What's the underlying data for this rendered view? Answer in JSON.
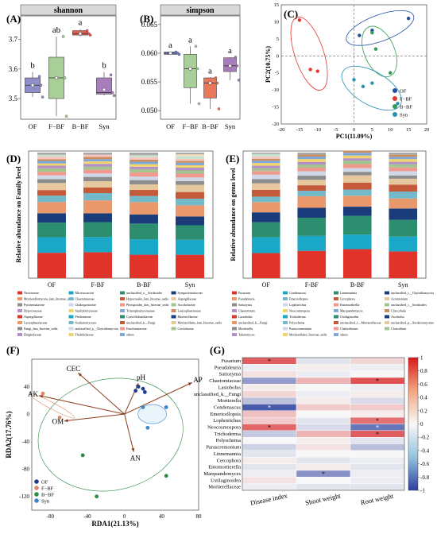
{
  "panels": {
    "A": "(A)",
    "B": "(B)",
    "C": "(C)",
    "D": "(D)",
    "E": "(E)",
    "F": "(F)",
    "G": "(G)"
  },
  "chart_data": [
    {
      "id": "A",
      "type": "box",
      "title": "shannon",
      "categories": [
        "OF",
        "F−BF",
        "B−BF",
        "Syn"
      ],
      "boxes": [
        {
          "q1": 3.52,
          "median": 3.545,
          "q3": 3.57,
          "min": 3.505,
          "max": 3.59,
          "mean": 3.545,
          "color": "#8f8ec9",
          "points": [
            3.505,
            3.545,
            3.575
          ]
        },
        {
          "q1": 3.5,
          "median": 3.57,
          "q3": 3.64,
          "min": 3.44,
          "max": 3.71,
          "mean": 3.57,
          "color": "#a8cf98",
          "points": [
            3.44,
            3.57,
            3.71
          ]
        },
        {
          "q1": 3.715,
          "median": 3.72,
          "q3": 3.73,
          "min": 3.71,
          "max": 3.735,
          "mean": 3.72,
          "color": "#e85a52",
          "points": [
            3.715,
            3.72,
            3.73
          ]
        },
        {
          "q1": 3.515,
          "median": 3.52,
          "q3": 3.57,
          "min": 3.51,
          "max": 3.59,
          "mean": 3.53,
          "color": "#a87dbb",
          "points": [
            3.51,
            3.52,
            3.58
          ]
        }
      ],
      "letters": [
        "b",
        "ab",
        "a",
        "b"
      ],
      "ylim": [
        3.43,
        3.78
      ],
      "yticks": [
        "3.5",
        "3.6",
        "3.7"
      ]
    },
    {
      "id": "B",
      "type": "box",
      "title": "simpson",
      "categories": [
        "OF",
        "F−BF",
        "B−BF",
        "Syn"
      ],
      "boxes": [
        {
          "q1": 0.0598,
          "median": 0.06,
          "q3": 0.0602,
          "min": 0.0597,
          "max": 0.0603,
          "mean": 0.06,
          "color": "#6b7fc9",
          "points": [
            0.0598,
            0.06,
            0.0602
          ]
        },
        {
          "q1": 0.054,
          "median": 0.0573,
          "q3": 0.0598,
          "min": 0.0512,
          "max": 0.0612,
          "mean": 0.0573,
          "color": "#a8cf98",
          "points": [
            0.0512,
            0.0573,
            0.0612
          ]
        },
        {
          "q1": 0.0522,
          "median": 0.0548,
          "q3": 0.0557,
          "min": 0.0503,
          "max": 0.0558,
          "mean": 0.0548,
          "color": "#e8775c",
          "points": [
            0.0503,
            0.0548,
            0.0557
          ]
        },
        {
          "q1": 0.0568,
          "median": 0.0578,
          "q3": 0.0592,
          "min": 0.0553,
          "max": 0.0593,
          "mean": 0.0578,
          "color": "#a87dbb",
          "points": [
            0.0553,
            0.0578,
            0.0593
          ]
        }
      ],
      "letters": [
        "a",
        "a",
        "a",
        "a"
      ],
      "ylim": [
        0.0485,
        0.0665
      ],
      "yticks": [
        "0.050",
        "0.055",
        "0.060",
        "0.065"
      ]
    },
    {
      "id": "C",
      "type": "scatter",
      "xlabel": "PC1(11.09%)",
      "ylabel": "PC2(10.75%)",
      "xlim": [
        -20,
        20
      ],
      "ylim": [
        -20,
        15
      ],
      "xticks": [
        -20,
        -15,
        -10,
        -5,
        0,
        5,
        10,
        15,
        20
      ],
      "yticks": [
        -20,
        -15,
        -10,
        -5,
        0,
        5,
        10,
        15
      ],
      "series": [
        {
          "name": "OF",
          "color": "#1f4fa0",
          "points": [
            [
              1.5,
              6
            ],
            [
              5,
              7.5
            ],
            [
              15,
              11
            ]
          ]
        },
        {
          "name": "F−BF",
          "color": "#e3362c",
          "points": [
            [
              -15,
              10.5
            ],
            [
              -12,
              -4
            ],
            [
              -10,
              -4.5
            ]
          ]
        },
        {
          "name": "B−BF",
          "color": "#2e9a52",
          "points": [
            [
              5,
              6.8
            ],
            [
              6,
              2
            ],
            [
              10,
              -5
            ]
          ]
        },
        {
          "name": "Syn",
          "color": "#2b8fb3",
          "points": [
            [
              0,
              -7
            ],
            [
              2.5,
              -9
            ],
            [
              5,
              -8
            ],
            [
              12,
              -14
            ]
          ]
        }
      ]
    },
    {
      "id": "D",
      "type": "stacked-bar",
      "ylabel": "Relative abundance on Family level",
      "categories": [
        "OF",
        "F-BF",
        "B-BF",
        "Syn"
      ],
      "series_colors": [
        "#e0342b",
        "#1aa8c8",
        "#2c8e6e",
        "#1b3c7a",
        "#e8986b",
        "#74b9c9",
        "#c45a3a",
        "#e5c89e",
        "#8d8d8d",
        "#cfd8e8",
        "#f09a8f",
        "#a3c48e",
        "#b48fc7",
        "#f2d56a",
        "#7fa7d8",
        "#cc8d5c"
      ],
      "legend": [
        "Nectriaceae",
        "Microascaceae",
        "unclassified_o__Sordariales",
        "Sympoventuriaceae",
        "Mortierellomycota_fam_Incertae_sedis",
        "Chaetomiaceae",
        "Hypocreales_fam_Incertae_sedis",
        "Aspergillaceae",
        "Pyronemataceae",
        "Cladosporiaceae",
        "Pleosporales_fam_Incertae_sedis",
        "Ascobolaceae",
        "Hypocreaceae",
        "Stachybotryaceae",
        "Trimorphomycetaceae",
        "Lasiosphaeriaceae",
        "Aspergillaceae",
        "Piedraiaceae",
        "Cystofilobasidiaceae",
        "Mortierellaceae",
        "Lasiosphaeriaceae",
        "Sordariomycetes",
        "unclassified_k__Fungi",
        "Mortierellales_fam_Incertae_sedis",
        "Fungi_fam_Incertae_sedis",
        "unclassified_p__Chytridiomycota",
        "Entolomataceae",
        "Cortiolaceae",
        "Dinglerlaceae",
        "Thelebolaceae",
        "others"
      ]
    },
    {
      "id": "E",
      "type": "stacked-bar",
      "ylabel": "Relative abundance on genus level",
      "categories": [
        "OF",
        "F-BF",
        "B-BF",
        "Syn"
      ],
      "series_colors": [
        "#e0342b",
        "#1aa8c8",
        "#2c8e6e",
        "#1b3c7a",
        "#e8986b",
        "#74b9c9",
        "#c45a3a",
        "#e5c89e",
        "#8d8d8d",
        "#cfd8e8",
        "#f09a8f",
        "#a3c48e",
        "#b48fc7",
        "#f2d56a",
        "#7fa7d8",
        "#cc8d5c"
      ],
      "legend": [
        "Fusarium",
        "Condenascus",
        "Linnemannia",
        "unclassified_c__Chytridiomycota",
        "Pseudaleuria",
        "Emericellopsis",
        "Cercophora",
        "Acremonium",
        "Saitozyma",
        "Lophotrichus",
        "Entomorthrella",
        "unclassified_c__Sordariales",
        "Chaetomium",
        "Neocosmospora",
        "Marquandomyces",
        "Clitocybula",
        "Lasiobolus",
        "Trichoderma",
        "Ustilaginoidea",
        "Ascobolus",
        "unclassified_k__Fungi",
        "Polyschema",
        "unclassified_f__Mortierellaceae",
        "unclassified_p__Sordariomycetes",
        "Mortierella",
        "Parascronnonium",
        "Cladorrhinum",
        "Clostridium",
        "Talaromyces",
        "Mortierellales_Incertae_sedis",
        "others"
      ]
    },
    {
      "id": "F",
      "type": "rda",
      "xlabel": "RDA1(21.13%)",
      "ylabel": "RDA2(17.76%)",
      "xlim": [
        -100,
        80
      ],
      "ylim": [
        -140,
        80
      ],
      "xticks": [
        -80,
        -40,
        0,
        40,
        80
      ],
      "yticks": [
        -120,
        -80,
        -40,
        0,
        40
      ],
      "arrows": [
        {
          "label": "CEC",
          "x": -50,
          "y": 60
        },
        {
          "label": "AK",
          "x": -92,
          "y": 27
        },
        {
          "label": "pH",
          "x": 15,
          "y": 45
        },
        {
          "label": "AP",
          "x": 73,
          "y": 46
        },
        {
          "label": "OM",
          "x": -65,
          "y": -10
        },
        {
          "label": "AN",
          "x": 10,
          "y": -55
        }
      ],
      "series": [
        {
          "name": "OF",
          "color": "#1f3d8a",
          "points": [
            [
              15,
              40
            ],
            [
              20,
              37
            ],
            [
              22,
              32
            ],
            [
              12,
              34
            ]
          ]
        },
        {
          "name": "F−BF",
          "color": "#d98a68",
          "points": [
            [
              -88,
              30
            ],
            [
              -70,
              -5
            ]
          ]
        },
        {
          "name": "B−BF",
          "color": "#2e8a44",
          "points": [
            [
              -45,
              -60
            ],
            [
              45,
              -90
            ],
            [
              -30,
              -120
            ]
          ]
        },
        {
          "name": "Syn",
          "color": "#3f86c7",
          "points": [
            [
              20,
              10
            ],
            [
              25,
              -20
            ],
            [
              45,
              10
            ]
          ]
        }
      ]
    },
    {
      "id": "G",
      "type": "heatmap",
      "xlabels": [
        "Disease index",
        "Shoot weight",
        "Root weight"
      ],
      "ylabels": [
        "Fusarium",
        "Pseudaleuria",
        "Saitozyma",
        "Chaetomiaceae",
        "Lasiobolus",
        "unclassified_k__Fungi",
        "Mortierella",
        "Condenascus",
        "Emericellopsis",
        "Lophotrichus",
        "Neocosmospora",
        "Trichoderma",
        "Polyschema",
        "Parascremonium",
        "Linnemannia",
        "Cercophora",
        "Entomortierella",
        "Marquandomyces",
        "Ustilaginoidea",
        "Mortierellaceae"
      ],
      "values": [
        [
          0.7,
          -0.1,
          0.15
        ],
        [
          -0.05,
          0.05,
          -0.05
        ],
        [
          0.1,
          -0.05,
          0.0
        ],
        [
          -0.5,
          0.3,
          0.75
        ],
        [
          0.05,
          0.0,
          -0.05
        ],
        [
          0.15,
          -0.05,
          0.05
        ],
        [
          -0.3,
          0.05,
          -0.15
        ],
        [
          -0.85,
          0.2,
          0.2
        ],
        [
          0.25,
          0.0,
          0.05
        ],
        [
          0.2,
          -0.1,
          0.6
        ],
        [
          0.65,
          -0.15,
          -0.7
        ],
        [
          -0.25,
          0.3,
          0.7
        ],
        [
          0.0,
          0.05,
          -0.1
        ],
        [
          -0.2,
          0.1,
          -0.3
        ],
        [
          -0.1,
          0.0,
          0.0
        ],
        [
          0.05,
          -0.1,
          -0.05
        ],
        [
          -0.1,
          0.05,
          -0.1
        ],
        [
          -0.05,
          -0.55,
          -0.05
        ],
        [
          0.1,
          0.0,
          -0.05
        ],
        [
          -0.05,
          -0.1,
          -0.1
        ]
      ],
      "stars": [
        [
          0,
          0
        ],
        [
          3,
          2
        ],
        [
          7,
          0
        ],
        [
          9,
          2
        ],
        [
          10,
          0
        ],
        [
          10,
          2
        ],
        [
          11,
          2
        ],
        [
          17,
          1
        ]
      ],
      "colorbar_ticks": [
        "1",
        "0.8",
        "0.6",
        "0.4",
        "0.2",
        "0",
        "-0.2",
        "-0.4",
        "-0.6",
        "-0.8",
        "-1"
      ]
    }
  ]
}
